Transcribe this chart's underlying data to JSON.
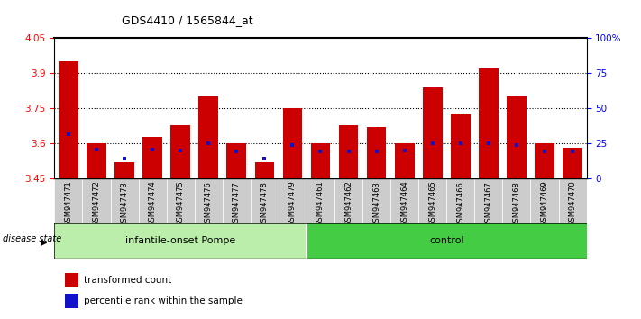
{
  "title": "GDS4410 / 1565844_at",
  "samples": [
    "GSM947471",
    "GSM947472",
    "GSM947473",
    "GSM947474",
    "GSM947475",
    "GSM947476",
    "GSM947477",
    "GSM947478",
    "GSM947479",
    "GSM947461",
    "GSM947462",
    "GSM947463",
    "GSM947464",
    "GSM947465",
    "GSM947466",
    "GSM947467",
    "GSM947468",
    "GSM947469",
    "GSM947470"
  ],
  "red_values": [
    3.95,
    3.6,
    3.52,
    3.63,
    3.68,
    3.8,
    3.6,
    3.52,
    3.75,
    3.6,
    3.68,
    3.67,
    3.6,
    3.84,
    3.73,
    3.92,
    3.8,
    3.6,
    3.58
  ],
  "blue_values": [
    3.64,
    3.575,
    3.535,
    3.575,
    3.57,
    3.6,
    3.565,
    3.535,
    3.595,
    3.565,
    3.565,
    3.565,
    3.57,
    3.6,
    3.6,
    3.6,
    3.595,
    3.565,
    3.565
  ],
  "ylim_left": [
    3.45,
    4.05
  ],
  "ylim_right": [
    0,
    100
  ],
  "yticks_left": [
    3.45,
    3.6,
    3.75,
    3.9,
    4.05
  ],
  "yticks_right": [
    0,
    25,
    50,
    75,
    100
  ],
  "ytick_labels_right": [
    "0",
    "25",
    "50",
    "75",
    "100%"
  ],
  "hlines": [
    3.6,
    3.75,
    3.9
  ],
  "group1_label": "infantile-onset Pompe",
  "group2_label": "control",
  "group1_count": 9,
  "group2_count": 10,
  "disease_state_label": "disease state",
  "legend_red": "transformed count",
  "legend_blue": "percentile rank within the sample",
  "bar_color": "#cc0000",
  "dot_color": "#1111cc",
  "group1_bg": "#bbeeaa",
  "group2_bg": "#44cc44",
  "tick_bg": "#cccccc",
  "bar_width": 0.7,
  "base_value": 3.45,
  "bg_white": "#ffffff"
}
